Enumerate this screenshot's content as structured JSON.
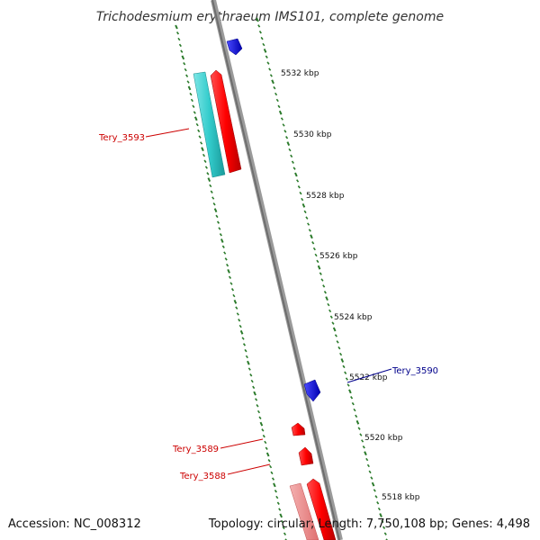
{
  "title": "Trichodesmium erythraeum IMS101, complete genome",
  "accession_text": "Accession: NC_008312",
  "summary_text": "Topology: circular; Length: 7,750,108 bp; Genes: 4,498",
  "colors": {
    "forward_gene": "#ff0000",
    "reverse_gene": "#1414e6",
    "tick": "#2a7a2a",
    "backbone": "#8a8a8a",
    "cds_cyan": "#33cccc",
    "forward_label": "#cc0000",
    "reverse_label": "#00008b"
  },
  "scale_ticks": [
    {
      "label": "5532 kbp"
    },
    {
      "label": "5530 kbp"
    },
    {
      "label": "5528 kbp"
    },
    {
      "label": "5526 kbp"
    },
    {
      "label": "5524 kbp"
    },
    {
      "label": "5522 kbp"
    },
    {
      "label": "5520 kbp"
    },
    {
      "label": "5518 kbp"
    }
  ],
  "gene_labels": [
    {
      "label": "Tery_3593",
      "strand": "forward"
    },
    {
      "label": "Tery_3590",
      "strand": "reverse"
    },
    {
      "label": "Tery_3589",
      "strand": "forward"
    },
    {
      "label": "Tery_3588",
      "strand": "forward"
    }
  ]
}
